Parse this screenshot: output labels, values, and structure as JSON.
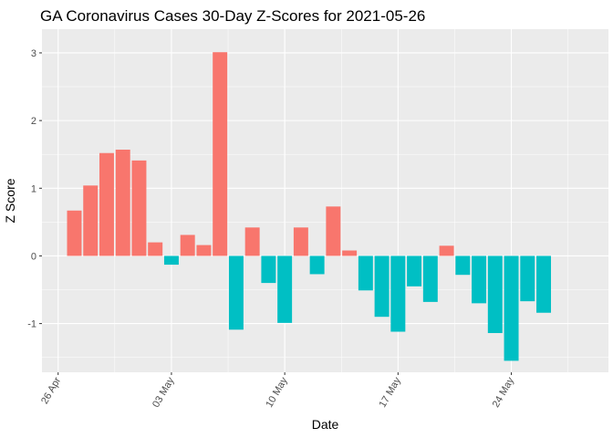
{
  "chart_data": {
    "type": "bar",
    "title": "GA Coronavirus Cases 30-Day Z-Scores for 2021-05-26",
    "xlabel": "Date",
    "ylabel": "Z Score",
    "ylim": [
      -1.72,
      3.35
    ],
    "y_ticks": [
      -1,
      0,
      1,
      2,
      3
    ],
    "x_ticks": [
      {
        "label": "26 Apr",
        "date": "2021-04-26"
      },
      {
        "label": "03 May",
        "date": "2021-05-03"
      },
      {
        "label": "10 May",
        "date": "2021-05-10"
      },
      {
        "label": "17 May",
        "date": "2021-05-17"
      },
      {
        "label": "24 May",
        "date": "2021-05-24"
      }
    ],
    "x_range": [
      "2021-04-25",
      "2021-05-30"
    ],
    "positive_color": "#F8766D",
    "negative_color": "#00BFC4",
    "dates": [
      "2021-04-27",
      "2021-04-28",
      "2021-04-29",
      "2021-04-30",
      "2021-05-01",
      "2021-05-02",
      "2021-05-03",
      "2021-05-04",
      "2021-05-05",
      "2021-05-06",
      "2021-05-07",
      "2021-05-08",
      "2021-05-09",
      "2021-05-10",
      "2021-05-11",
      "2021-05-12",
      "2021-05-13",
      "2021-05-14",
      "2021-05-15",
      "2021-05-16",
      "2021-05-17",
      "2021-05-18",
      "2021-05-19",
      "2021-05-20",
      "2021-05-21",
      "2021-05-22",
      "2021-05-23",
      "2021-05-24",
      "2021-05-25",
      "2021-05-26"
    ],
    "values": [
      0.67,
      1.04,
      1.52,
      1.57,
      1.41,
      0.2,
      -0.13,
      0.31,
      0.16,
      3.01,
      -1.09,
      0.42,
      -0.4,
      -0.99,
      0.42,
      -0.27,
      0.73,
      0.08,
      -0.51,
      -0.9,
      -1.12,
      -0.45,
      -0.68,
      0.15,
      -0.28,
      -0.7,
      -1.14,
      -1.55,
      -0.67,
      -0.84
    ]
  }
}
